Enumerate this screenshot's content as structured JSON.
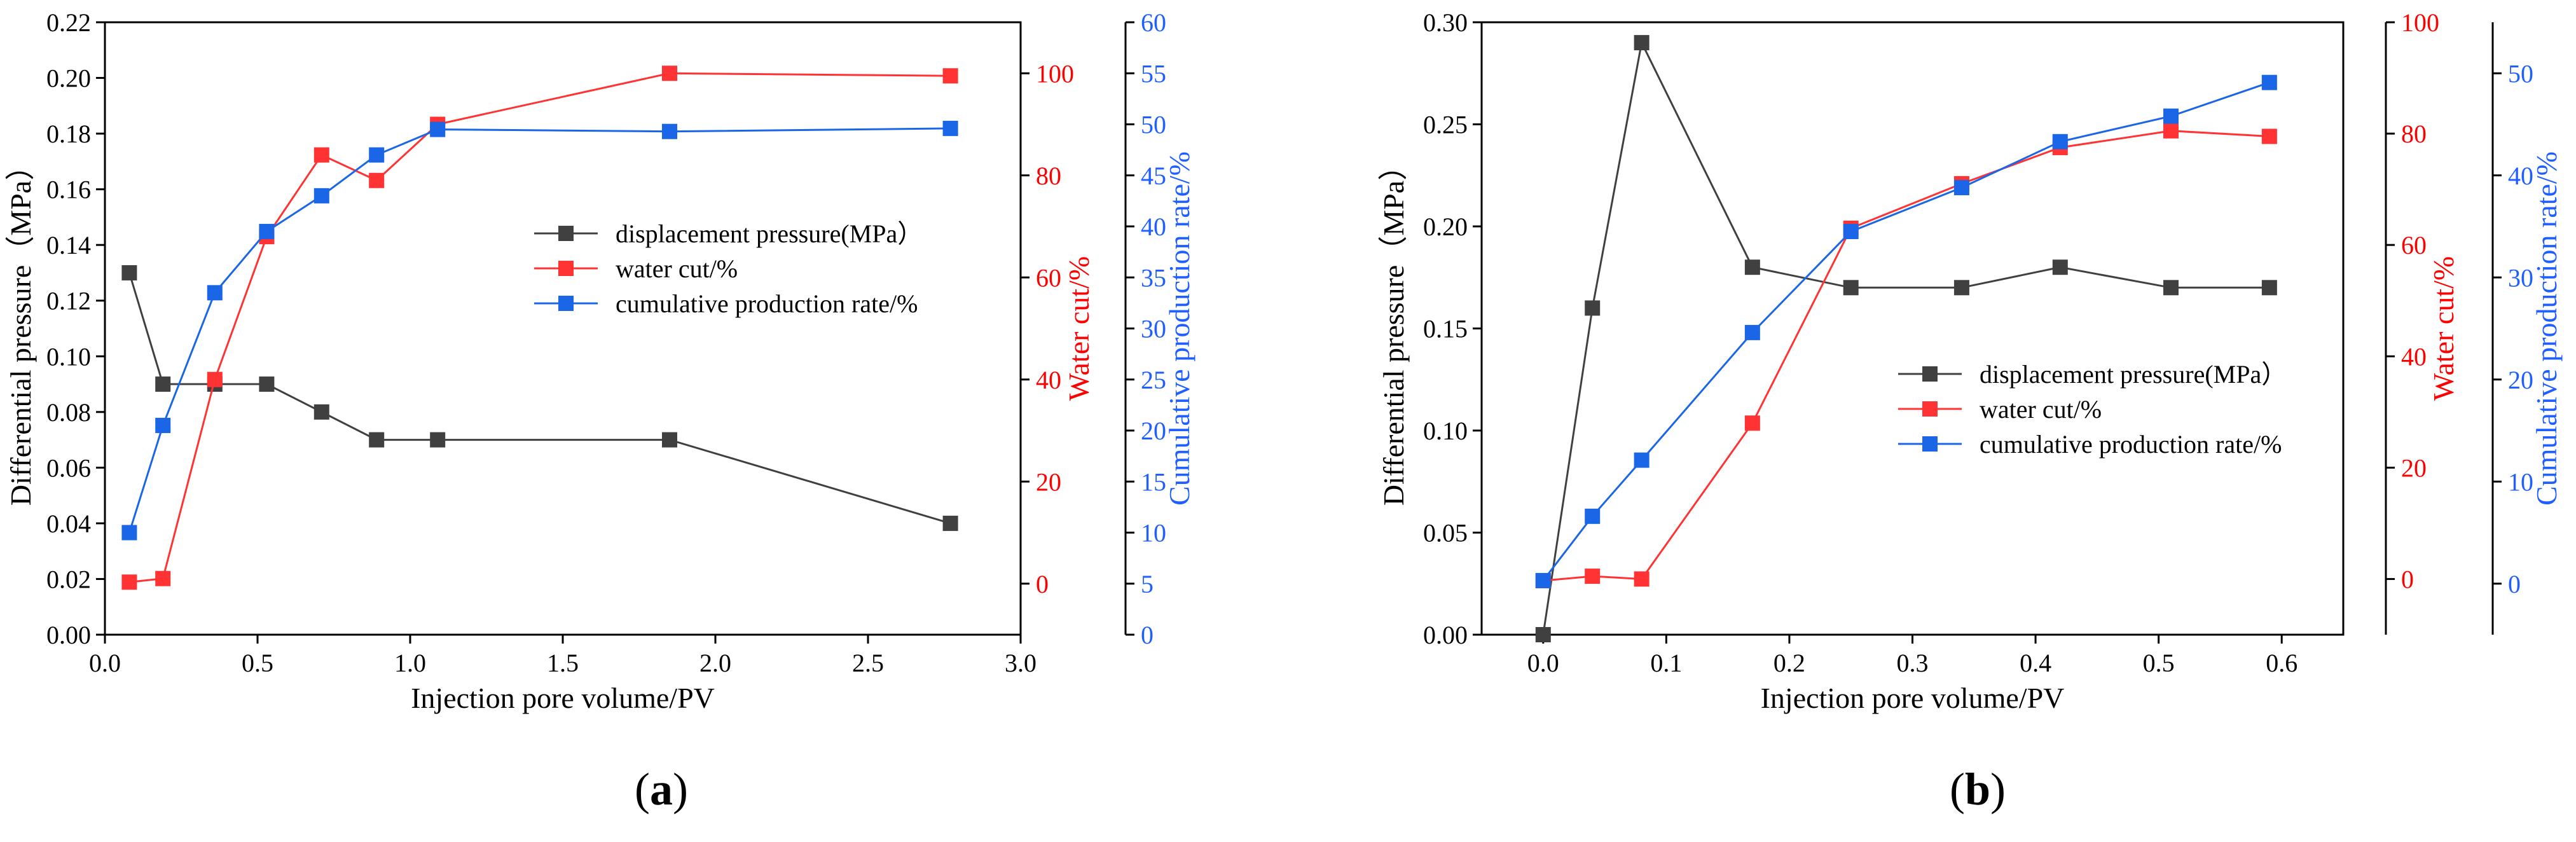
{
  "chart_data": [
    {
      "panel": "a",
      "type": "line",
      "caption_letter": "a",
      "xlabel": "Injection pore volume/PV",
      "x_ticks": [
        "0.0",
        "0.5",
        "1.0",
        "1.5",
        "2.0",
        "2.5",
        "3.0"
      ],
      "xlim": [
        0,
        3.0
      ],
      "legend_position": "center-right",
      "axes": {
        "left": {
          "label": "Differential pressure（MPa）",
          "lim": [
            0,
            0.22
          ],
          "ticks": [
            "0.00",
            "0.02",
            "0.04",
            "0.06",
            "0.08",
            "0.10",
            "0.12",
            "0.14",
            "0.16",
            "0.18",
            "0.20",
            "0.22"
          ],
          "color": "#000000"
        },
        "right1": {
          "label": "Water cut/%",
          "lim": [
            -10,
            110
          ],
          "ticks": [
            "0",
            "20",
            "40",
            "60",
            "80",
            "100"
          ],
          "color": "#ff0000"
        },
        "right2": {
          "label": "Cumulative production rate/%",
          "lim": [
            0,
            60
          ],
          "ticks": [
            "0",
            "5",
            "10",
            "15",
            "20",
            "25",
            "30",
            "35",
            "40",
            "45",
            "50",
            "55",
            "60"
          ],
          "color": "#1f5fff"
        }
      },
      "series": [
        {
          "name": "displacement pressure(MPa）",
          "axis": "left",
          "color": "#404040",
          "x": [
            0.08,
            0.19,
            0.36,
            0.53,
            0.71,
            0.89,
            1.09,
            1.85,
            2.77
          ],
          "values": [
            0.13,
            0.09,
            0.09,
            0.09,
            0.08,
            0.07,
            0.07,
            0.07,
            0.04
          ]
        },
        {
          "name": "water cut/%",
          "axis": "right1",
          "color": "#ff3333",
          "x": [
            0.08,
            0.19,
            0.36,
            0.53,
            0.71,
            0.89,
            1.09,
            1.85,
            2.77
          ],
          "values": [
            0.3,
            1.0,
            40,
            68,
            84,
            79,
            90,
            100,
            99.5
          ]
        },
        {
          "name": "cumulative production rate/%",
          "axis": "right2",
          "color": "#1a66e6",
          "x": [
            0.08,
            0.19,
            0.36,
            0.53,
            0.71,
            0.89,
            1.09,
            1.85,
            2.77
          ],
          "values": [
            10,
            20.5,
            33.5,
            39.5,
            43,
            47,
            49.5,
            49.3,
            49.6
          ]
        }
      ]
    },
    {
      "panel": "b",
      "type": "line",
      "caption_letter": "b",
      "xlabel": "Injection pore volume/PV",
      "x_ticks": [
        "0.0",
        "0.1",
        "0.2",
        "0.3",
        "0.4",
        "0.5",
        "0.6"
      ],
      "xlim": [
        -0.05,
        0.65
      ],
      "legend_position": "center-right",
      "axes": {
        "left": {
          "label": "Differential pressure（MPa）",
          "lim": [
            0,
            0.3
          ],
          "ticks": [
            "0.00",
            "0.05",
            "0.10",
            "0.15",
            "0.20",
            "0.25",
            "0.30"
          ],
          "color": "#000000"
        },
        "right1": {
          "label": "Water cut/%",
          "lim": [
            -10,
            100
          ],
          "ticks": [
            "0",
            "20",
            "40",
            "60",
            "80",
            "100"
          ],
          "color": "#ff0000"
        },
        "right2": {
          "label": "Cumulative production rate/%",
          "lim": [
            -5,
            55
          ],
          "ticks": [
            "0",
            "10",
            "20",
            "30",
            "40",
            "50"
          ],
          "color": "#1f5fff"
        }
      },
      "series": [
        {
          "name": "displacement pressure(MPa）",
          "axis": "left",
          "color": "#404040",
          "x": [
            0.0,
            0.04,
            0.08,
            0.17,
            0.25,
            0.34,
            0.42,
            0.51,
            0.59
          ],
          "values": [
            0.0,
            0.16,
            0.29,
            0.18,
            0.17,
            0.17,
            0.18,
            0.17,
            0.17
          ]
        },
        {
          "name": "water cut/%",
          "axis": "right1",
          "color": "#ff3333",
          "x": [
            0.0,
            0.04,
            0.08,
            0.17,
            0.25,
            0.34,
            0.42,
            0.51,
            0.59
          ],
          "values": [
            -0.3,
            0.5,
            0.0,
            28,
            63,
            71,
            77.5,
            80.5,
            79.5
          ]
        },
        {
          "name": "cumulative production rate/%",
          "axis": "right2",
          "color": "#1a66e6",
          "x": [
            0.0,
            0.04,
            0.08,
            0.17,
            0.25,
            0.34,
            0.42,
            0.51,
            0.59
          ],
          "values": [
            0.3,
            6.6,
            12.1,
            24.6,
            34.5,
            38.8,
            43.3,
            45.8,
            49.1
          ]
        }
      ]
    }
  ]
}
